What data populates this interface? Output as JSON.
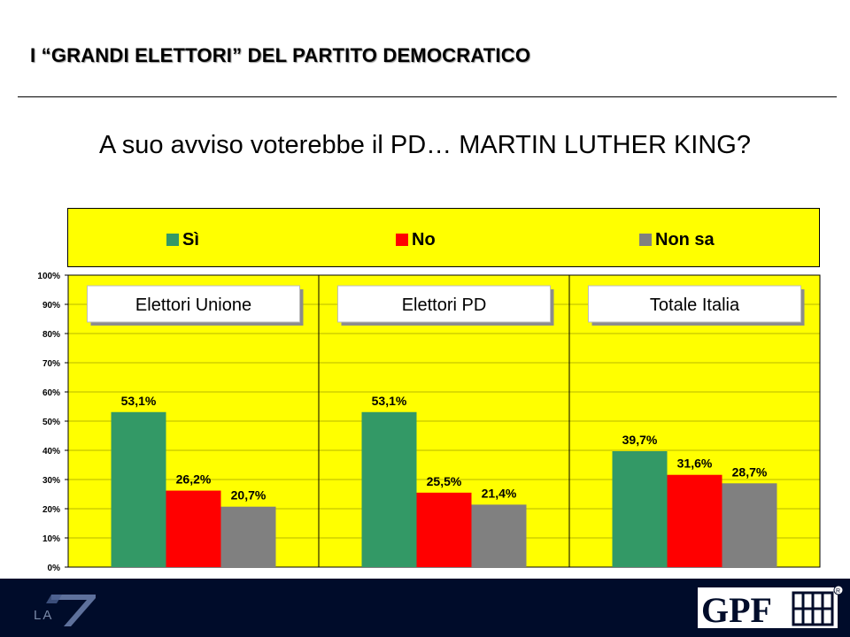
{
  "header": {
    "title": "I “GRANDI ELETTORI” DEL PARTITO DEMOCRATICO",
    "question": "A suo avviso voterebbe il PD… MARTIN LUTHER KING?"
  },
  "logos": {
    "la7": "LA 7",
    "gpf": "GPF"
  },
  "colors": {
    "background": "#ffff00",
    "footer": "#000c2a",
    "si": "#339966",
    "no": "#ff0000",
    "non_sa": "#808080"
  },
  "chart_data": {
    "type": "bar",
    "groups": [
      "Elettori Unione",
      "Elettori PD",
      "Totale Italia"
    ],
    "series": [
      {
        "name": "Sì",
        "color": "#339966",
        "values": [
          53.1,
          53.1,
          39.7
        ],
        "labels": [
          "53,1%",
          "53,1%",
          "39,7%"
        ]
      },
      {
        "name": "No",
        "color": "#ff0000",
        "values": [
          26.2,
          25.5,
          31.6
        ],
        "labels": [
          "26,2%",
          "25,5%",
          "31,6%"
        ]
      },
      {
        "name": "Non sa",
        "color": "#808080",
        "values": [
          20.7,
          21.4,
          28.7
        ],
        "labels": [
          "20,7%",
          "21,4%",
          "28,7%"
        ]
      }
    ],
    "ylim": [
      0,
      100
    ],
    "yticks": [
      0,
      10,
      20,
      30,
      40,
      50,
      60,
      70,
      80,
      90,
      100
    ],
    "ytick_labels": [
      "0%",
      "10%",
      "20%",
      "30%",
      "40%",
      "50%",
      "60%",
      "70%",
      "80%",
      "90%",
      "100%"
    ],
    "grid": true,
    "legend_position": "top"
  }
}
